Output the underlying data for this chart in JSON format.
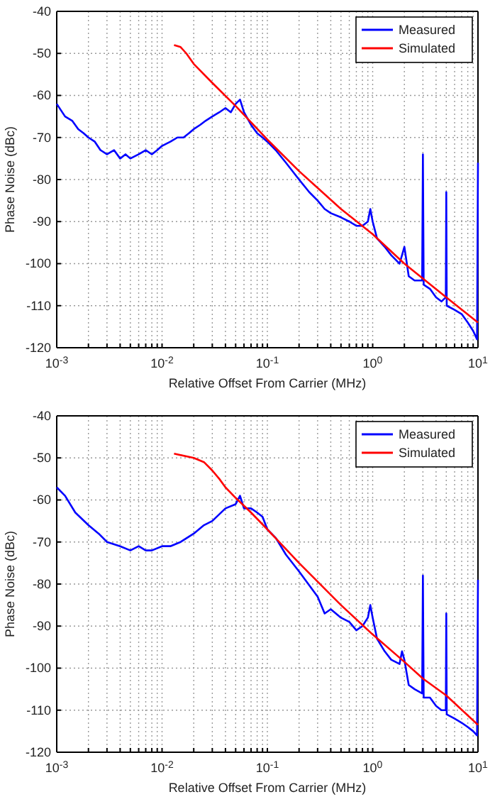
{
  "chart_data": [
    {
      "type": "line",
      "xlabel": "Relative Offset From Carrier (MHz)",
      "ylabel": "Phase Noise (dBc)",
      "log": "x",
      "grid": true,
      "legend": "top right",
      "xlim": [
        0.001,
        10
      ],
      "ylim": [
        -120,
        -40
      ],
      "xticks": [
        {
          "value": 0.001,
          "label": "10$^{-3}$"
        },
        {
          "value": 0.002,
          "label": null
        },
        {
          "value": 0.003,
          "label": null
        },
        {
          "value": 0.004,
          "label": null
        },
        {
          "value": 0.005,
          "label": null
        },
        {
          "value": 0.006,
          "label": null
        },
        {
          "value": 0.007,
          "label": null
        },
        {
          "value": 0.008,
          "label": null
        },
        {
          "value": 0.009,
          "label": null
        },
        {
          "value": 0.01,
          "label": "10$^{-2}$"
        },
        {
          "value": 0.02,
          "label": null
        },
        {
          "value": 0.03,
          "label": null
        },
        {
          "value": 0.04,
          "label": null
        },
        {
          "value": 0.05,
          "label": null
        },
        {
          "value": 0.06,
          "label": null
        },
        {
          "value": 0.07,
          "label": null
        },
        {
          "value": 0.08,
          "label": null
        },
        {
          "value": 0.09,
          "label": null
        },
        {
          "value": 0.1,
          "label": "10$^{-1}$"
        },
        {
          "value": 0.2,
          "label": null
        },
        {
          "value": 0.3,
          "label": null
        },
        {
          "value": 0.4,
          "label": null
        },
        {
          "value": 0.5,
          "label": null
        },
        {
          "value": 0.6,
          "label": null
        },
        {
          "value": 0.7,
          "label": null
        },
        {
          "value": 0.8,
          "label": null
        },
        {
          "value": 0.9,
          "label": null
        },
        {
          "value": 1,
          "label": "10$^{0}$"
        },
        {
          "value": 2,
          "label": null
        },
        {
          "value": 3,
          "label": null
        },
        {
          "value": 4,
          "label": null
        },
        {
          "value": 5,
          "label": null
        },
        {
          "value": 6,
          "label": null
        },
        {
          "value": 7,
          "label": null
        },
        {
          "value": 8,
          "label": null
        },
        {
          "value": 9,
          "label": null
        },
        {
          "value": 10,
          "label": "10$^{1}$"
        }
      ],
      "yticks": [
        -120,
        -110,
        -100,
        -90,
        -80,
        -70,
        -60,
        -50,
        -40
      ],
      "series": [
        {
          "name": "Measured",
          "color": "#0000ff",
          "x": [
            0.001,
            0.0012,
            0.0014,
            0.0016,
            0.0018,
            0.002,
            0.0023,
            0.0026,
            0.003,
            0.0035,
            0.004,
            0.0045,
            0.005,
            0.006,
            0.007,
            0.008,
            0.009,
            0.01,
            0.012,
            0.014,
            0.016,
            0.018,
            0.02,
            0.023,
            0.026,
            0.03,
            0.035,
            0.04,
            0.045,
            0.05,
            0.055,
            0.06,
            0.07,
            0.08,
            0.09,
            0.1,
            0.12,
            0.15,
            0.2,
            0.25,
            0.3,
            0.35,
            0.4,
            0.5,
            0.6,
            0.7,
            0.8,
            0.9,
            0.95,
            1,
            1.1,
            1.3,
            1.5,
            1.8,
            1.9,
            2,
            2.2,
            2.5,
            2.95,
            3,
            3.05,
            3.5,
            4,
            4.5,
            4.95,
            5,
            5.05,
            6,
            7,
            8,
            9,
            9.8,
            10
          ],
          "values": [
            -62,
            -65,
            -66,
            -68,
            -69,
            -70,
            -71,
            -73,
            -74,
            -73,
            -75,
            -74,
            -75,
            -74,
            -73,
            -74,
            -73,
            -72,
            -71,
            -70,
            -70,
            -69,
            -68,
            -67,
            -66,
            -65,
            -64,
            -63,
            -64,
            -62,
            -61,
            -64,
            -67,
            -69,
            -70,
            -71,
            -73,
            -76,
            -80,
            -83,
            -85,
            -87,
            -88,
            -89,
            -90,
            -91,
            -91,
            -90,
            -87,
            -90,
            -94,
            -96,
            -98,
            -100,
            -98,
            -96,
            -103,
            -104,
            -104,
            -74,
            -105,
            -106,
            -108,
            -109,
            -108,
            -83,
            -110,
            -111,
            -112,
            -114,
            -116,
            -118,
            -76
          ]
        },
        {
          "name": "Simulated",
          "color": "#ff0000",
          "x": [
            0.013,
            0.015,
            0.017,
            0.02,
            0.03,
            0.05,
            0.1,
            0.2,
            0.5,
            1,
            2,
            5,
            10
          ],
          "values": [
            -48,
            -48.5,
            -50,
            -52.5,
            -57,
            -62.5,
            -70.5,
            -78,
            -87,
            -93,
            -100,
            -108,
            -114
          ]
        }
      ]
    },
    {
      "type": "line",
      "xlabel": "Relative Offset From Carrier (MHz)",
      "ylabel": "Phase Noise (dBc)",
      "log": "x",
      "grid": true,
      "legend": "top right",
      "xlim": [
        0.001,
        10
      ],
      "ylim": [
        -120,
        -40
      ],
      "xticks": [
        {
          "value": 0.001,
          "label": "10$^{-3}$"
        },
        {
          "value": 0.002,
          "label": null
        },
        {
          "value": 0.003,
          "label": null
        },
        {
          "value": 0.004,
          "label": null
        },
        {
          "value": 0.005,
          "label": null
        },
        {
          "value": 0.006,
          "label": null
        },
        {
          "value": 0.007,
          "label": null
        },
        {
          "value": 0.008,
          "label": null
        },
        {
          "value": 0.009,
          "label": null
        },
        {
          "value": 0.01,
          "label": "10$^{-2}$"
        },
        {
          "value": 0.02,
          "label": null
        },
        {
          "value": 0.03,
          "label": null
        },
        {
          "value": 0.04,
          "label": null
        },
        {
          "value": 0.05,
          "label": null
        },
        {
          "value": 0.06,
          "label": null
        },
        {
          "value": 0.07,
          "label": null
        },
        {
          "value": 0.08,
          "label": null
        },
        {
          "value": 0.09,
          "label": null
        },
        {
          "value": 0.1,
          "label": "10$^{-1}$"
        },
        {
          "value": 0.2,
          "label": null
        },
        {
          "value": 0.3,
          "label": null
        },
        {
          "value": 0.4,
          "label": null
        },
        {
          "value": 0.5,
          "label": null
        },
        {
          "value": 0.6,
          "label": null
        },
        {
          "value": 0.7,
          "label": null
        },
        {
          "value": 0.8,
          "label": null
        },
        {
          "value": 0.9,
          "label": null
        },
        {
          "value": 1,
          "label": "10$^{0}$"
        },
        {
          "value": 2,
          "label": null
        },
        {
          "value": 3,
          "label": null
        },
        {
          "value": 4,
          "label": null
        },
        {
          "value": 5,
          "label": null
        },
        {
          "value": 6,
          "label": null
        },
        {
          "value": 7,
          "label": null
        },
        {
          "value": 8,
          "label": null
        },
        {
          "value": 9,
          "label": null
        },
        {
          "value": 10,
          "label": "10$^{1}$"
        }
      ],
      "yticks": [
        -120,
        -110,
        -100,
        -90,
        -80,
        -70,
        -60,
        -50,
        -40
      ],
      "series": [
        {
          "name": "Measured",
          "color": "#0000ff",
          "x": [
            0.001,
            0.0012,
            0.0015,
            0.002,
            0.0025,
            0.003,
            0.004,
            0.005,
            0.006,
            0.007,
            0.008,
            0.01,
            0.012,
            0.015,
            0.02,
            0.025,
            0.03,
            0.04,
            0.05,
            0.055,
            0.06,
            0.07,
            0.08,
            0.09,
            0.1,
            0.12,
            0.15,
            0.2,
            0.3,
            0.35,
            0.4,
            0.5,
            0.6,
            0.7,
            0.8,
            0.9,
            0.95,
            1,
            1.1,
            1.3,
            1.5,
            1.8,
            1.9,
            2,
            2.2,
            2.5,
            2.95,
            3,
            3.05,
            3.5,
            4,
            4.5,
            4.95,
            5,
            5.05,
            6,
            7,
            8,
            9,
            9.8,
            10
          ],
          "values": [
            -57,
            -59,
            -63,
            -66,
            -68,
            -70,
            -71,
            -72,
            -71,
            -72,
            -72,
            -71,
            -71,
            -70,
            -68,
            -66,
            -65,
            -62,
            -61,
            -59,
            -62,
            -62,
            -63,
            -64,
            -67,
            -69,
            -73,
            -77,
            -83,
            -87,
            -86,
            -88,
            -89,
            -91,
            -90,
            -88,
            -85,
            -88,
            -93,
            -96,
            -98,
            -99,
            -96,
            -98,
            -104,
            -105,
            -106,
            -78,
            -107,
            -107,
            -109,
            -110,
            -110,
            -87,
            -111,
            -112,
            -113,
            -114,
            -115,
            -116,
            -79
          ]
        },
        {
          "name": "Simulated",
          "color": "#ff0000",
          "x": [
            0.013,
            0.02,
            0.025,
            0.03,
            0.035,
            0.04,
            0.05,
            0.07,
            0.1,
            0.2,
            0.5,
            1,
            2,
            3,
            5,
            10
          ],
          "values": [
            -49,
            -50,
            -51,
            -53,
            -55,
            -57,
            -59.5,
            -63,
            -67,
            -75,
            -85,
            -92,
            -98.5,
            -102.5,
            -106.5,
            -113.5
          ]
        }
      ]
    }
  ]
}
